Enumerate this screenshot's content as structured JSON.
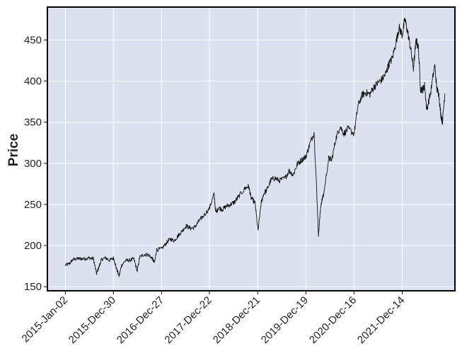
{
  "chart_data": {
    "type": "line",
    "title": "",
    "xlabel": "",
    "ylabel": "Price",
    "ylim": [
      145,
      490
    ],
    "y_ticks": [
      150,
      200,
      250,
      300,
      350,
      400,
      450
    ],
    "x_ticks": [
      {
        "label": "2015-Jan-02",
        "date": "2015-01-02"
      },
      {
        "label": "2015-Dec-30",
        "date": "2015-12-30"
      },
      {
        "label": "2016-Dec-27",
        "date": "2016-12-27"
      },
      {
        "label": "2017-Dec-22",
        "date": "2017-12-22"
      },
      {
        "label": "2018-Dec-21",
        "date": "2018-12-21"
      },
      {
        "label": "2019-Dec-19",
        "date": "2019-12-19"
      },
      {
        "label": "2020-Dec-16",
        "date": "2020-12-16"
      },
      {
        "label": "2021-Dec-14",
        "date": "2021-12-14"
      }
    ],
    "xlim": [
      "2014-08-20",
      "2023-01-15"
    ],
    "grid": true,
    "background": "#dde1ef",
    "line_color": "#111111",
    "series": [
      {
        "x": [
          "2015-01-02",
          "2015-02-01",
          "2015-03-01",
          "2015-04-01",
          "2015-05-01",
          "2015-06-01",
          "2015-07-01",
          "2015-08-01",
          "2015-08-25",
          "2015-09-15",
          "2015-10-01",
          "2015-11-01",
          "2015-12-01",
          "2016-01-01",
          "2016-01-20",
          "2016-02-11",
          "2016-03-01",
          "2016-04-01",
          "2016-05-01",
          "2016-06-01",
          "2016-06-27",
          "2016-07-15",
          "2016-08-15",
          "2016-09-15",
          "2016-10-15",
          "2016-11-04",
          "2016-11-20",
          "2016-12-27",
          "2017-02-01",
          "2017-03-01",
          "2017-04-01",
          "2017-05-01",
          "2017-06-01",
          "2017-07-01",
          "2017-08-01",
          "2017-09-01",
          "2017-10-01",
          "2017-11-01",
          "2017-12-22",
          "2018-01-26",
          "2018-02-08",
          "2018-03-01",
          "2018-04-01",
          "2018-05-01",
          "2018-06-01",
          "2018-07-01",
          "2018-08-01",
          "2018-09-20",
          "2018-10-15",
          "2018-11-01",
          "2018-12-01",
          "2018-12-24",
          "2019-01-15",
          "2019-02-01",
          "2019-03-01",
          "2019-04-01",
          "2019-05-01",
          "2019-06-01",
          "2019-07-15",
          "2019-08-15",
          "2019-09-15",
          "2019-10-15",
          "2019-11-15",
          "2019-12-19",
          "2020-01-15",
          "2020-02-19",
          "2020-03-10",
          "2020-03-23",
          "2020-04-10",
          "2020-05-01",
          "2020-06-08",
          "2020-07-01",
          "2020-08-01",
          "2020-09-02",
          "2020-10-01",
          "2020-11-01",
          "2020-12-16",
          "2021-01-15",
          "2021-02-15",
          "2021-03-15",
          "2021-04-15",
          "2021-05-15",
          "2021-06-15",
          "2021-07-15",
          "2021-08-15",
          "2021-09-02",
          "2021-10-01",
          "2021-11-01",
          "2021-11-20",
          "2021-12-14",
          "2022-01-03",
          "2022-01-24",
          "2022-02-15",
          "2022-03-08",
          "2022-03-29",
          "2022-04-15",
          "2022-05-01",
          "2022-05-20",
          "2022-06-01",
          "2022-06-16",
          "2022-07-15",
          "2022-08-16",
          "2022-09-01",
          "2022-09-15",
          "2022-09-30",
          "2022-10-13",
          "2022-10-31"
        ],
        "y": [
          176,
          178,
          183,
          184,
          184,
          184,
          185,
          184,
          166,
          175,
          183,
          185,
          182,
          185,
          173,
          163,
          176,
          182,
          182,
          184,
          169,
          186,
          189,
          189,
          185,
          179,
          195,
          196,
          203,
          208,
          206,
          212,
          218,
          224,
          221,
          222,
          229,
          235,
          245,
          263,
          240,
          246,
          244,
          248,
          250,
          253,
          260,
          270,
          272,
          258,
          252,
          218,
          250,
          262,
          268,
          280,
          282,
          279,
          282,
          291,
          286,
          299,
          304,
          308,
          322,
          338,
          265,
          212,
          250,
          262,
          306,
          304,
          330,
          345,
          336,
          342,
          336,
          370,
          383,
          386,
          384,
          393,
          398,
          402,
          410,
          420,
          428,
          450,
          465,
          456,
          475,
          460,
          440,
          415,
          450,
          440,
          390,
          390,
          395,
          365,
          385,
          420,
          390,
          385,
          360,
          350,
          385
        ]
      }
    ]
  }
}
